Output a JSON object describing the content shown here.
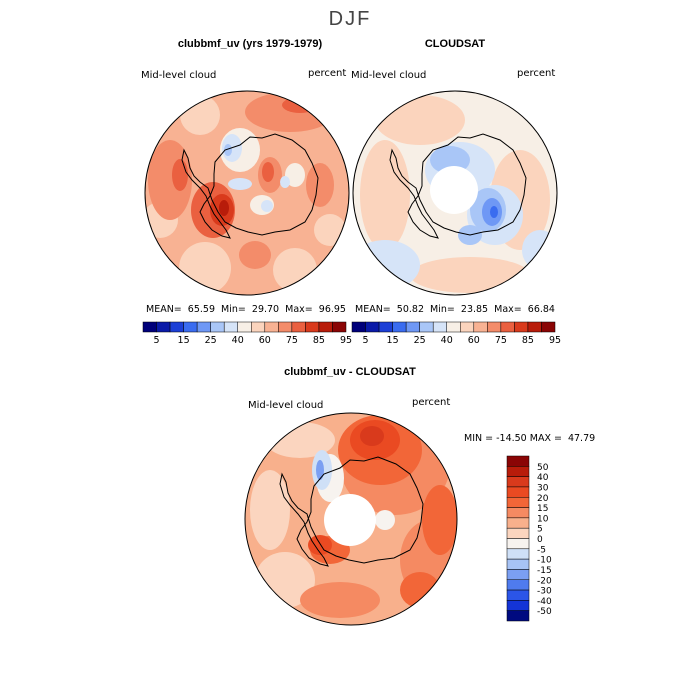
{
  "figure_title": "DJF",
  "panels": {
    "left": {
      "title": "clubbmf_uv (yrs 1979-1979)",
      "variable": "Mid-level cloud",
      "units": "percent",
      "stats": "MEAN=  65.59  Min=  29.70  Max=  96.95"
    },
    "right": {
      "title": "CLOUDSAT",
      "variable": "Mid-level cloud",
      "units": "percent",
      "stats": "MEAN=  50.82  Min=  23.85  Max=  66.84"
    },
    "diff": {
      "title": "clubbmf_uv - CLOUDSAT",
      "variable": "Mid-level cloud",
      "units": "percent",
      "stats": "MIN = -14.50 MAX =  47.79"
    }
  },
  "colorbar_top": {
    "labels": [
      "5",
      "15",
      "25",
      "40",
      "60",
      "75",
      "85",
      "95"
    ],
    "colors": [
      "#00007a",
      "#0a1aa8",
      "#1c3fd6",
      "#3a6cf0",
      "#6f98f5",
      "#a9c6f7",
      "#d6e4f8",
      "#f7efe6",
      "#fbd4bd",
      "#f8b293",
      "#f38c6a",
      "#ea6040",
      "#d93a1c",
      "#b81c0a",
      "#8a0505"
    ]
  },
  "colorbar_diff": {
    "labels": [
      "50",
      "40",
      "30",
      "20",
      "15",
      "10",
      "5",
      "0",
      "-5",
      "-10",
      "-15",
      "-20",
      "-30",
      "-40",
      "-50"
    ],
    "colors": [
      "#8a0505",
      "#b81c0a",
      "#d93a1c",
      "#ea4a22",
      "#f26638",
      "#f58a62",
      "#f8b08c",
      "#fbd5bf",
      "#f7f3ef",
      "#cfe0f7",
      "#a7c3f5",
      "#7b9ff2",
      "#4f7bee",
      "#2b55e8",
      "#1434d6",
      "#000a80"
    ]
  },
  "chart_data": [
    {
      "type": "heatmap",
      "title": "clubbmf_uv (yrs 1979-1979)",
      "field": "Mid-level cloud (percent), DJF, south polar stereographic",
      "levels": [
        5,
        15,
        25,
        40,
        60,
        75,
        85,
        95
      ],
      "mean": 65.59,
      "min": 29.7,
      "max": 96.95
    },
    {
      "type": "heatmap",
      "title": "CLOUDSAT",
      "field": "Mid-level cloud (percent), DJF, south polar stereographic",
      "levels": [
        5,
        15,
        25,
        40,
        60,
        75,
        85,
        95
      ],
      "mean": 50.82,
      "min": 23.85,
      "max": 66.84
    },
    {
      "type": "heatmap",
      "title": "clubbmf_uv - CLOUDSAT",
      "field": "Mid-level cloud difference (percent)",
      "levels": [
        -50,
        -40,
        -30,
        -20,
        -15,
        -10,
        -5,
        0,
        5,
        10,
        15,
        20,
        30,
        40,
        50
      ],
      "min": -14.5,
      "max": 47.79
    }
  ]
}
